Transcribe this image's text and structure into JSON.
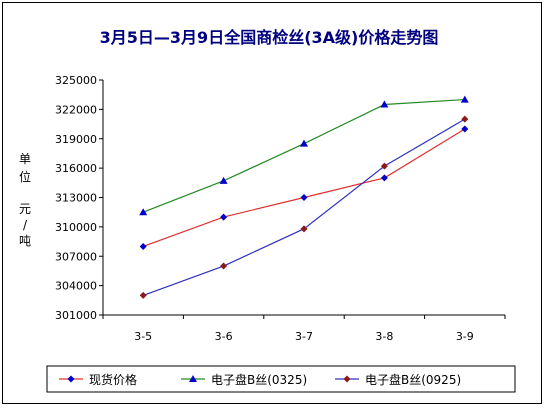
{
  "chart_data": {
    "type": "line",
    "title": "3月5日—3月9日全国商检丝(3A级)价格走势图",
    "ylabel_lines": [
      "单",
      "位",
      "元",
      "/",
      "吨"
    ],
    "categories": [
      "3-5",
      "3-6",
      "3-7",
      "3-8",
      "3-9"
    ],
    "ylim": [
      301000,
      325000
    ],
    "yticks": [
      301000,
      304000,
      307000,
      310000,
      313000,
      316000,
      319000,
      322000,
      325000
    ],
    "grid": false,
    "legend_position": "bottom",
    "series": [
      {
        "name": "现货价格",
        "values": [
          308000,
          311000,
          313000,
          315000,
          320000
        ],
        "color": "#E03030",
        "marker": "diamond",
        "marker_color": "#0000CC"
      },
      {
        "name": "电子盘B丝(0325)",
        "values": [
          311500,
          314700,
          318500,
          322500,
          323000
        ],
        "color": "#228B22",
        "marker": "triangle",
        "marker_color": "#0000CC"
      },
      {
        "name": "电子盘B丝(0925)",
        "values": [
          303000,
          306000,
          309800,
          316200,
          321000
        ],
        "color": "#3030C0",
        "marker": "diamond",
        "marker_color": "#8B1A1A"
      }
    ]
  }
}
